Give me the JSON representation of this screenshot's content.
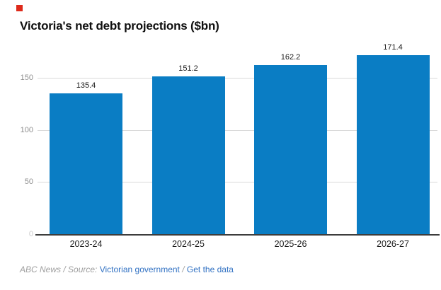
{
  "brand": {
    "logo_color": "#de2a1b"
  },
  "title": "Victoria's net debt projections ($bn)",
  "chart_data": {
    "type": "bar",
    "title": "Victoria's net debt projections ($bn)",
    "categories": [
      "2023-24",
      "2024-25",
      "2025-26",
      "2026-27"
    ],
    "values": [
      135.4,
      151.2,
      162.2,
      171.4
    ],
    "value_labels": [
      "135.4",
      "151.2",
      "162.2",
      "171.4"
    ],
    "xlabel": "",
    "ylabel": "",
    "ylim": [
      0,
      180
    ],
    "yticks": [
      0,
      50,
      100,
      150
    ],
    "grid": true,
    "legend": false,
    "bar_color": "#0a7dc4",
    "gridline_color": "#dadada",
    "baseline_color": "#3d3d3d",
    "tick_label_color": "#8f8f8f"
  },
  "footer": {
    "attribution": "ABC News / Source:",
    "source_link": "Victorian government",
    "separator": "/",
    "data_link": "Get the data",
    "link_color": "#3272c3"
  }
}
